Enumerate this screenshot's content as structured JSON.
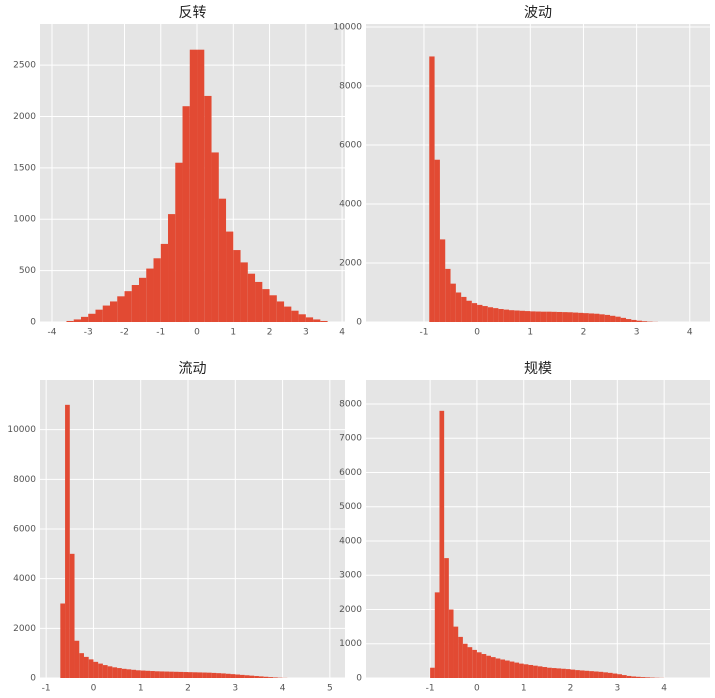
{
  "chart_data": [
    {
      "type": "histogram",
      "title": "反转",
      "color": "#e24a33",
      "grid": true,
      "bins": [
        -3.6,
        -3.4,
        -3.2,
        -3.0,
        -2.8,
        -2.6,
        -2.4,
        -2.2,
        -2.0,
        -1.8,
        -1.6,
        -1.4,
        -1.2,
        -1.0,
        -0.8,
        -0.6,
        -0.4,
        -0.2,
        0,
        0.2,
        0.4,
        0.6,
        0.8,
        1.0,
        1.2,
        1.4,
        1.6,
        1.8,
        2.0,
        2.2,
        2.4,
        2.6,
        2.8,
        3.0,
        3.2,
        3.4,
        3.6
      ],
      "counts": [
        10,
        25,
        50,
        80,
        120,
        160,
        200,
        250,
        300,
        360,
        430,
        520,
        620,
        760,
        1050,
        1550,
        2100,
        2650,
        2650,
        2200,
        1650,
        1200,
        880,
        700,
        580,
        470,
        390,
        320,
        260,
        200,
        150,
        110,
        75,
        45,
        25,
        10
      ],
      "xlim": [
        -4.33,
        4.08
      ],
      "xticks": [
        -4,
        -3,
        -2,
        -1,
        0,
        1,
        2,
        3,
        4
      ],
      "ylim": [
        0,
        2900
      ],
      "yticks": [
        0,
        500,
        1000,
        1500,
        2000,
        2500
      ]
    },
    {
      "type": "histogram",
      "title": "波动",
      "color": "#e24a33",
      "grid": true,
      "bins": [
        -0.9,
        -0.8,
        -0.7,
        -0.6,
        -0.5,
        -0.4,
        -0.3,
        -0.2,
        -0.1,
        0,
        0.1,
        0.2,
        0.3,
        0.4,
        0.5,
        0.6,
        0.7,
        0.8,
        0.9,
        1.0,
        1.1,
        1.2,
        1.3,
        1.4,
        1.5,
        1.6,
        1.7,
        1.8,
        1.9,
        2.0,
        2.1,
        2.2,
        2.3,
        2.4,
        2.5,
        2.6,
        2.7,
        2.8,
        2.9,
        3.0,
        3.1,
        3.2,
        3.3,
        3.4
      ],
      "counts": [
        9000,
        5500,
        2800,
        1800,
        1300,
        1000,
        850,
        720,
        640,
        580,
        540,
        500,
        470,
        440,
        420,
        400,
        390,
        380,
        370,
        360,
        355,
        350,
        350,
        345,
        340,
        335,
        330,
        320,
        310,
        300,
        290,
        280,
        260,
        240,
        210,
        180,
        140,
        100,
        70,
        45,
        25,
        12,
        5
      ],
      "xlim": [
        -2.09,
        4.38
      ],
      "xticks": [
        -1,
        0,
        1,
        2,
        3,
        4
      ],
      "ylim": [
        0,
        10100
      ],
      "yticks": [
        0,
        2000,
        4000,
        6000,
        8000,
        10000
      ]
    },
    {
      "type": "histogram",
      "title": "流动",
      "color": "#e24a33",
      "grid": true,
      "bins": [
        -0.7,
        -0.6,
        -0.5,
        -0.4,
        -0.3,
        -0.2,
        -0.1,
        0,
        0.1,
        0.2,
        0.3,
        0.4,
        0.5,
        0.6,
        0.7,
        0.8,
        0.9,
        1.0,
        1.1,
        1.2,
        1.3,
        1.4,
        1.5,
        1.6,
        1.7,
        1.8,
        1.9,
        2.0,
        2.1,
        2.2,
        2.3,
        2.4,
        2.5,
        2.6,
        2.7,
        2.8,
        2.9,
        3.0,
        3.1,
        3.2,
        3.3,
        3.4,
        3.5,
        3.6,
        3.7,
        3.8,
        3.9,
        4.0,
        4.1
      ],
      "counts": [
        3000,
        11000,
        5000,
        1500,
        1000,
        850,
        750,
        650,
        580,
        520,
        470,
        430,
        400,
        370,
        350,
        330,
        310,
        300,
        290,
        280,
        270,
        265,
        260,
        255,
        250,
        245,
        240,
        235,
        230,
        225,
        220,
        215,
        205,
        195,
        185,
        170,
        155,
        140,
        125,
        110,
        95,
        80,
        65,
        50,
        35,
        22,
        12,
        5
      ],
      "xlim": [
        -1.13,
        5.32
      ],
      "xticks": [
        -1,
        0,
        1,
        2,
        3,
        4,
        5
      ],
      "ylim": [
        0,
        12000
      ],
      "yticks": [
        0,
        2000,
        4000,
        6000,
        8000,
        10000
      ]
    },
    {
      "type": "histogram",
      "title": "规模",
      "color": "#e24a33",
      "grid": true,
      "bins": [
        -1.0,
        -0.9,
        -0.8,
        -0.7,
        -0.6,
        -0.5,
        -0.4,
        -0.3,
        -0.2,
        -0.1,
        0,
        0.1,
        0.2,
        0.3,
        0.4,
        0.5,
        0.6,
        0.7,
        0.8,
        0.9,
        1.0,
        1.1,
        1.2,
        1.3,
        1.4,
        1.5,
        1.6,
        1.7,
        1.8,
        1.9,
        2.0,
        2.1,
        2.2,
        2.3,
        2.4,
        2.5,
        2.6,
        2.7,
        2.8,
        2.9,
        3.0,
        3.1,
        3.2,
        3.3,
        3.4,
        3.5,
        3.6,
        3.7,
        3.8,
        3.9,
        4.0
      ],
      "counts": [
        300,
        2500,
        7800,
        3500,
        2000,
        1500,
        1200,
        1000,
        900,
        820,
        750,
        700,
        650,
        610,
        570,
        540,
        510,
        480,
        450,
        420,
        400,
        380,
        360,
        340,
        320,
        300,
        290,
        280,
        270,
        260,
        245,
        230,
        220,
        210,
        200,
        190,
        180,
        165,
        150,
        130,
        110,
        85,
        60,
        45,
        35,
        25,
        18,
        12,
        7,
        4
      ],
      "xlim": [
        -2.37,
        4.98
      ],
      "xticks": [
        -1,
        0,
        1,
        2,
        3,
        4
      ],
      "ylim": [
        0,
        8700
      ],
      "yticks": [
        0,
        1000,
        2000,
        3000,
        4000,
        5000,
        6000,
        7000,
        8000
      ]
    }
  ]
}
